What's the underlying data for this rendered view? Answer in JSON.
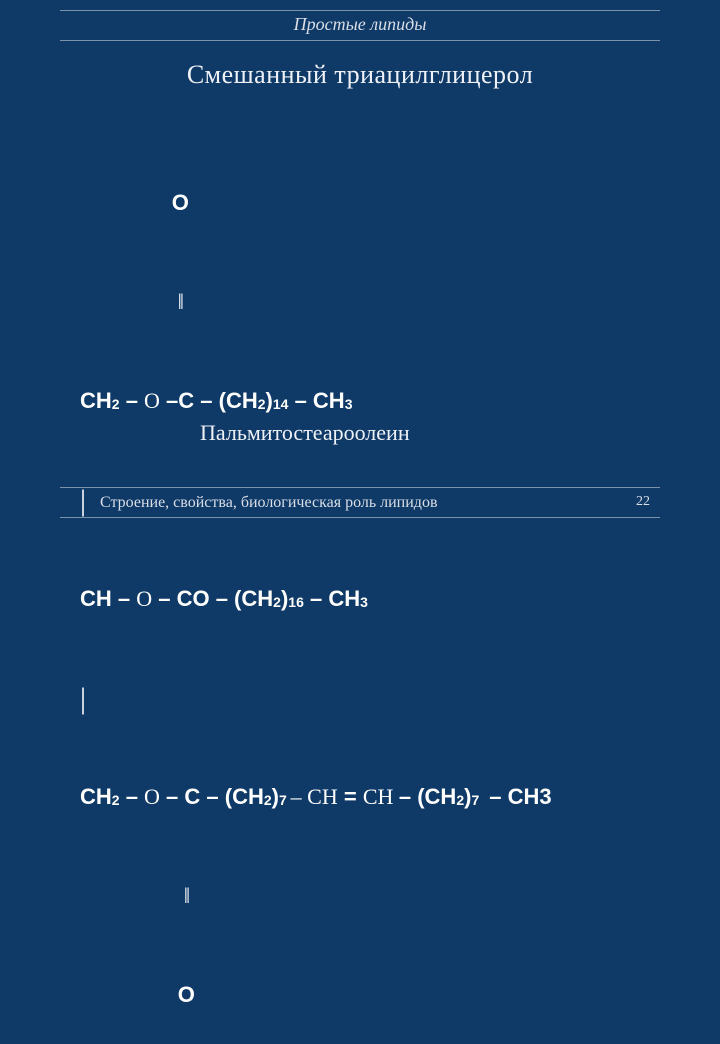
{
  "header": {
    "title": "Простые липиды"
  },
  "subtitle_part1": "Смешанный",
  "subtitle_spacer": "   ",
  "subtitle_part2": "триацилглицерол",
  "formula": {
    "r1_pad": "               ",
    "r1_O": "O",
    "r2_pad": "                ",
    "r2_dbl": "‖",
    "r3_a": "CH",
    "r3_sub1": "2",
    "r3_dash1": " – ",
    "r3_O": "O",
    "r3_dash2": " –",
    "r3_C": "C – (CH",
    "r3_sub2": "2",
    "r3_paren": ")",
    "r3_sub14": "14",
    "r3_dash3": " – CH",
    "r3_sub3": "3",
    "r4_bar": "|",
    "r5_a": "CH",
    "r5_dash1": " – ",
    "r5_O": "O",
    "r5_dash2": " – CO – (CH",
    "r5_sub2": "2",
    "r5_paren": ")",
    "r5_sub16": "16",
    "r5_dash3": " – CH",
    "r5_sub3": "3",
    "r6_bar": "|",
    "r7_a": "CH",
    "r7_sub1": "2",
    "r7_dash1": " – ",
    "r7_O": "O",
    "r7_dash2": " – C – (CH",
    "r7_sub2": "2",
    "r7_paren1": ")",
    "r7_sub7a": "7 ",
    "r7_light1": "– CH",
    "r7_eq": " = ",
    "r7_light2": "CH ",
    "r7_dash3": "– (CH",
    "r7_sub2b": "2",
    "r7_paren2": ")",
    "r7_sub7b": "7 ",
    "r7_dash4": " – CH3",
    "r8_pad": "                 ",
    "r8_dbl": "‖",
    "r9_pad": "                ",
    "r9_O": "O"
  },
  "caption": "Пальмитостеароолеин",
  "footer": {
    "text": "Строение, свойства, биологическая роль липидов",
    "page": "22"
  },
  "style": {
    "bg": "#0f3a68",
    "line": "#7a93ad",
    "text_light": "#d9dee6",
    "text": "#ffffff"
  }
}
